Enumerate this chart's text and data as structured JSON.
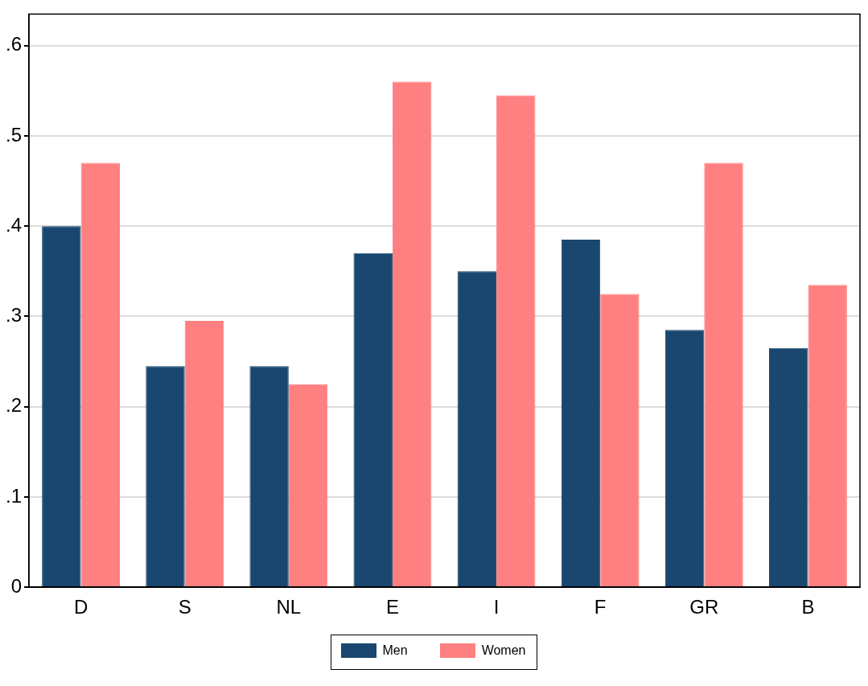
{
  "chart_data": {
    "type": "bar",
    "categories": [
      "D",
      "S",
      "NL",
      "E",
      "I",
      "F",
      "GR",
      "B"
    ],
    "series": [
      {
        "name": "Men",
        "color": "#1a476f",
        "values": [
          0.4,
          0.245,
          0.245,
          0.37,
          0.35,
          0.385,
          0.285,
          0.265
        ]
      },
      {
        "name": "Women",
        "color": "#ff8080",
        "values": [
          0.47,
          0.295,
          0.225,
          0.56,
          0.545,
          0.325,
          0.47,
          0.335
        ]
      }
    ],
    "ylim": [
      0,
      0.635
    ],
    "yticks": [
      {
        "value": 0,
        "label": "0"
      },
      {
        "value": 0.1,
        "label": ".1"
      },
      {
        "value": 0.2,
        "label": ".2"
      },
      {
        "value": 0.3,
        "label": ".3"
      },
      {
        "value": 0.4,
        "label": ".4"
      },
      {
        "value": 0.5,
        "label": ".5"
      },
      {
        "value": 0.6,
        "label": ".6"
      }
    ],
    "grid": "y",
    "legend": "bottom"
  }
}
